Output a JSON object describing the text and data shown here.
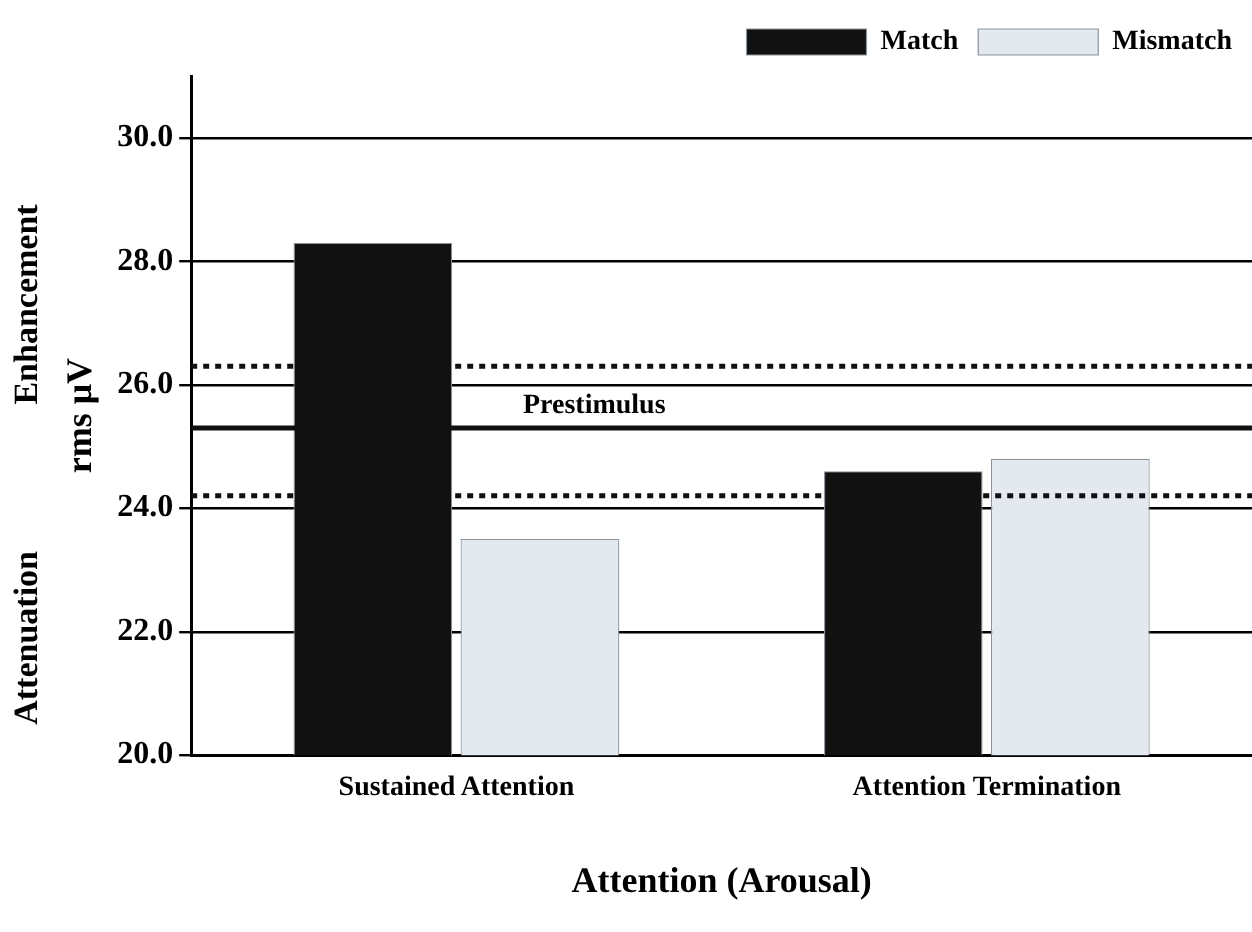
{
  "chart_data": {
    "type": "bar",
    "ylabel": "rms μV",
    "xlabel": "Attention (Arousal)",
    "categories": [
      "Sustained Attention",
      "Attention Termination"
    ],
    "series": [
      {
        "name": "Match",
        "color": "#111111",
        "values": [
          28.3,
          24.6
        ]
      },
      {
        "name": "Mismatch",
        "color": "#e4e9ef",
        "values": [
          23.5,
          24.8
        ]
      }
    ],
    "ylim": [
      20,
      31
    ],
    "yticks": [
      {
        "value": 20,
        "label": "20.0"
      },
      {
        "value": 22,
        "label": "22.0"
      },
      {
        "value": 24,
        "label": "24.0"
      },
      {
        "value": 26,
        "label": "26.0"
      },
      {
        "value": 28,
        "label": "28.0"
      },
      {
        "value": 30,
        "label": "30.0"
      }
    ],
    "grid": "y",
    "legend": "top right",
    "ref_lines": [
      {
        "axis": "y",
        "value": 25.3,
        "label": "Prestimulus",
        "line_style": "solid",
        "color": "#111111"
      },
      {
        "axis": "y",
        "value": 26.3,
        "label": null,
        "line_style": "dotted",
        "color": "#111111"
      },
      {
        "axis": "y",
        "value": 24.2,
        "label": null,
        "line_style": "dotted",
        "color": "#111111"
      }
    ],
    "annotations": [
      "Enhancement",
      "Attenuation"
    ]
  }
}
